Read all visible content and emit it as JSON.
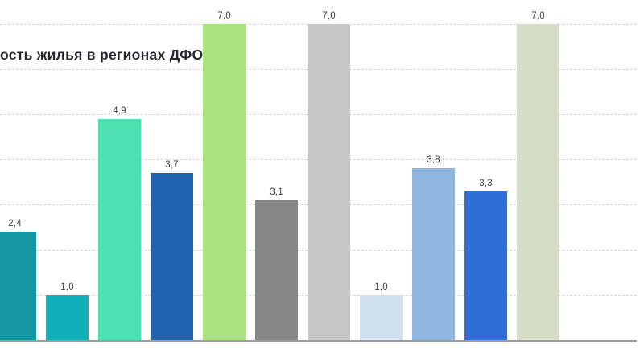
{
  "chart_data": {
    "type": "bar",
    "title": "ость жилья в регионах ДФО",
    "title_note": "title is cropped at the left edge of the screenshot",
    "values": [
      2.4,
      1.0,
      4.9,
      3.7,
      7.0,
      3.1,
      7.0,
      1.0,
      3.8,
      3.3,
      7.0
    ],
    "value_labels": [
      "2,4",
      "1,0",
      "4,9",
      "3,7",
      "7,0",
      "3,1",
      "7,0",
      "1,0",
      "3,8",
      "3,3",
      "7,0"
    ],
    "bar_colors": [
      "#1597A2",
      "#12AFBB",
      "#4EDFB3",
      "#1F64B0",
      "#ABE281",
      "#878787",
      "#C7C7C7",
      "#D0E0EF",
      "#90B6E0",
      "#2E6FD5",
      "#D6DDC6"
    ],
    "ylim": [
      0,
      7
    ],
    "gridline_levels": [
      1,
      2,
      3,
      4,
      5,
      6,
      7
    ],
    "grid_style": "dashed horizontal",
    "decimal_separator": ",",
    "legend": "none",
    "x_tick_labels": "not visible (cropped)",
    "colors": {
      "background": "#FFFFFF",
      "gridline": "#D6D6D6",
      "axis_line": "#9E9E9E",
      "value_label": "#3D3D3D",
      "title": "#26262E"
    }
  }
}
